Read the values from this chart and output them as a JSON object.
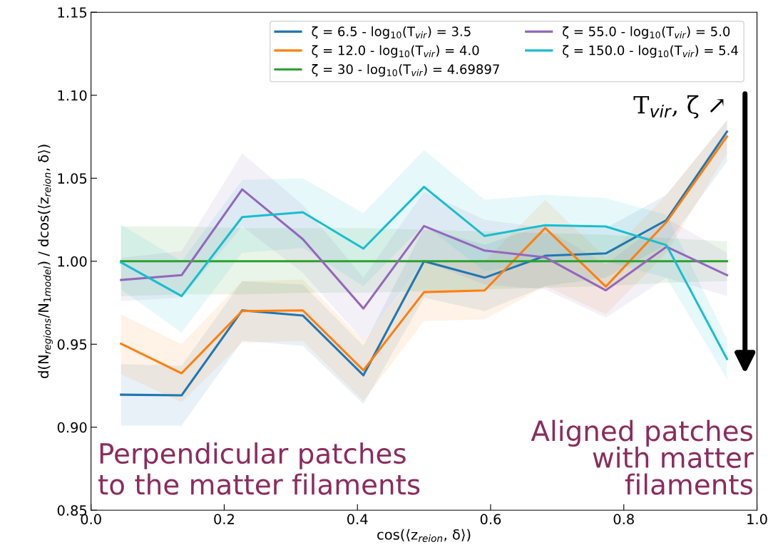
{
  "chart_data": {
    "type": "line",
    "xlabel": "cos(⟨z$_{reion}$, δ⟩)",
    "ylabel": "d(N$_{regions}$/N$_{1model}$) / dcos(⟨z$_{reion}$, δ⟩)",
    "x": [
      0.045,
      0.136,
      0.227,
      0.318,
      0.409,
      0.5,
      0.591,
      0.682,
      0.773,
      0.864,
      0.955
    ],
    "xlim": [
      0.0,
      1.0
    ],
    "xticks": [
      {
        "value": 0,
        "label": "0.0"
      },
      0.2,
      0.4,
      0.6,
      0.8,
      {
        "value": 1,
        "label": "1.0"
      }
    ],
    "ylim": [
      0.85,
      1.15
    ],
    "yticks": [
      0.85,
      {
        "value": 0.9,
        "label": "0.90"
      },
      0.95,
      {
        "value": 1,
        "label": "1.00"
      },
      1.05,
      {
        "value": 1.1,
        "label": "1.10"
      },
      1.15
    ],
    "grid": false,
    "legend": "top right",
    "marker": "none",
    "line_style": "solid",
    "series": [
      {
        "name": "ζ = 6.5 - log$_{10}$(T$_{vir}$) = 3.5",
        "color": "#1f77b4",
        "values": [
          0.9196,
          0.9192,
          0.9704,
          0.9673,
          0.9313,
          1.0,
          0.9901,
          1.0033,
          1.0047,
          1.0248,
          1.0781
        ],
        "lower": [
          0.901,
          0.901,
          0.952,
          0.949,
          0.914,
          0.978,
          0.97,
          0.985,
          0.99,
          1.01,
          1.06
        ],
        "upper": [
          0.938,
          0.937,
          0.988,
          0.986,
          0.949,
          1.02,
          1.01,
          1.022,
          1.02,
          1.04,
          1.085
        ]
      },
      {
        "name": "ζ = 12.0 - log$_{10}$(T$_{vir}$) = 4.0",
        "color": "#ff7f0e",
        "values": [
          0.9503,
          0.9325,
          0.97,
          0.9704,
          0.9343,
          0.9814,
          0.9824,
          1.02,
          0.9847,
          1.0236,
          1.0752
        ],
        "lower": [
          0.932,
          0.915,
          0.951,
          0.952,
          0.916,
          0.964,
          0.965,
          0.985,
          0.968,
          1.005,
          1.065
        ],
        "upper": [
          0.968,
          0.95,
          0.988,
          0.989,
          0.952,
          0.999,
          1.0,
          1.037,
          1.002,
          1.04,
          1.085
        ]
      },
      {
        "name": "ζ = 30 - log$_{10}$(T$_{vir}$) = 4.69897",
        "color": "#2ca02c",
        "values": [
          1.0,
          1.0,
          1.0,
          1.0,
          1.0,
          1.0,
          1.0,
          1.0,
          1.0,
          1.0,
          1.0
        ],
        "lower": [
          0.979,
          0.98,
          0.98,
          0.981,
          0.981,
          0.982,
          0.983,
          0.984,
          0.985,
          0.987,
          0.988
        ],
        "upper": [
          1.021,
          1.021,
          1.02,
          1.02,
          1.02,
          1.019,
          1.018,
          1.017,
          1.016,
          1.014,
          1.012
        ]
      },
      {
        "name": "ζ = 55.0 - log$_{10}$(T$_{vir}$) = 5.0",
        "color": "#9467bd",
        "values": [
          0.9887,
          0.9916,
          1.0433,
          1.0133,
          0.9715,
          1.0212,
          1.0064,
          1.0023,
          0.9825,
          1.0087,
          0.9916
        ],
        "lower": [
          0.976,
          0.978,
          1.021,
          0.993,
          0.952,
          1.0,
          0.986,
          0.983,
          0.966,
          0.99,
          0.979
        ],
        "upper": [
          1.002,
          1.006,
          1.065,
          1.034,
          0.99,
          1.042,
          1.025,
          1.02,
          0.998,
          1.026,
          1.005
        ]
      },
      {
        "name": "ζ = 150.0 - log$_{10}$(T$_{vir}$) = 5.4",
        "color": "#17becf",
        "values": [
          0.9993,
          0.979,
          1.0266,
          1.0295,
          1.0076,
          1.0448,
          1.0152,
          1.0217,
          1.0209,
          1.0097,
          0.9411
        ],
        "lower": [
          0.983,
          0.957,
          1.005,
          1.008,
          0.985,
          1.022,
          0.994,
          1.0,
          1.0,
          0.99,
          0.929
        ],
        "upper": [
          1.022,
          1.0,
          1.049,
          1.05,
          1.029,
          1.067,
          1.037,
          1.04,
          1.038,
          1.028,
          0.953
        ]
      }
    ],
    "annotations": [
      "T$_{vir}$, ζ ↗",
      "Perpendicular patches\nto the matter filaments",
      "Aligned patches\nwith matter\nfilaments"
    ]
  }
}
